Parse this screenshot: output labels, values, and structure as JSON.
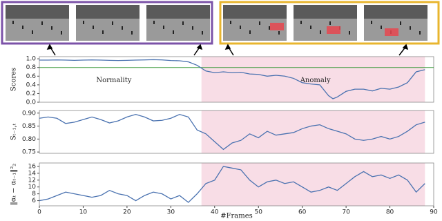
{
  "chart_data": [
    {
      "type": "line",
      "ylabel": "Scores",
      "x": [
        0,
        2,
        4,
        6,
        8,
        10,
        12,
        14,
        16,
        18,
        20,
        22,
        24,
        26,
        28,
        30,
        32,
        34,
        36,
        38,
        40,
        42,
        44,
        46,
        48,
        50,
        52,
        54,
        56,
        58,
        60,
        62,
        64,
        66,
        67,
        68,
        70,
        72,
        74,
        76,
        78,
        80,
        82,
        84,
        86,
        88
      ],
      "series": [
        {
          "color": "#4a72b0",
          "values": [
            0.97,
            0.97,
            0.975,
            0.97,
            0.965,
            0.97,
            0.975,
            0.97,
            0.965,
            0.96,
            0.965,
            0.97,
            0.975,
            0.98,
            0.975,
            0.96,
            0.955,
            0.93,
            0.85,
            0.72,
            0.68,
            0.7,
            0.68,
            0.69,
            0.65,
            0.64,
            0.6,
            0.62,
            0.6,
            0.55,
            0.45,
            0.42,
            0.4,
            0.15,
            0.08,
            0.12,
            0.25,
            0.3,
            0.3,
            0.26,
            0.32,
            0.3,
            0.35,
            0.45,
            0.7,
            0.75
          ]
        }
      ],
      "threshold": 0.8,
      "threshold_color": "#3a9a3a",
      "shaded_x": [
        37,
        88
      ],
      "shade_color": "#f8dde6",
      "annotations": [
        {
          "text": "Normality",
          "x": 17,
          "y": 0.5
        },
        {
          "text": "Anomaly",
          "x": 63,
          "y": 0.5
        }
      ],
      "xlim": [
        0,
        90
      ],
      "ylim": [
        0,
        1.05
      ],
      "yticks": [
        {
          "value": 0,
          "label": "0.0"
        },
        {
          "value": 0.2,
          "label": "0.2"
        },
        {
          "value": 0.4,
          "label": "0.4"
        },
        {
          "value": 0.6,
          "label": "0.6"
        },
        {
          "value": 0.8,
          "label": "0.8"
        },
        {
          "value": 1,
          "label": "1.0"
        }
      ]
    },
    {
      "type": "line",
      "ylabel": "Sₜ₋₁,ₜ",
      "x": [
        0,
        2,
        4,
        6,
        8,
        10,
        12,
        14,
        16,
        18,
        20,
        22,
        24,
        26,
        28,
        30,
        32,
        34,
        36,
        38,
        40,
        42,
        44,
        46,
        48,
        50,
        52,
        54,
        56,
        58,
        60,
        62,
        64,
        66,
        68,
        70,
        72,
        74,
        76,
        78,
        80,
        82,
        84,
        86,
        88
      ],
      "series": [
        {
          "color": "#4a72b0",
          "values": [
            0.88,
            0.885,
            0.88,
            0.86,
            0.865,
            0.875,
            0.885,
            0.875,
            0.862,
            0.87,
            0.885,
            0.895,
            0.885,
            0.87,
            0.872,
            0.88,
            0.895,
            0.885,
            0.835,
            0.82,
            0.79,
            0.76,
            0.785,
            0.795,
            0.82,
            0.805,
            0.83,
            0.815,
            0.82,
            0.825,
            0.84,
            0.85,
            0.855,
            0.84,
            0.83,
            0.82,
            0.8,
            0.795,
            0.8,
            0.81,
            0.8,
            0.81,
            0.83,
            0.855,
            0.865
          ]
        }
      ],
      "shaded_x": [
        37,
        88
      ],
      "shade_color": "#f8dde6",
      "xlim": [
        0,
        90
      ],
      "ylim": [
        0.745,
        0.91
      ],
      "yticks": [
        0.75,
        {
          "value": 0.8,
          "label": "0.80"
        },
        0.85,
        {
          "value": 0.9,
          "label": "0.90"
        }
      ]
    },
    {
      "type": "line",
      "ylabel": "‖αₜ − αₜ₋₁‖²₂",
      "xlabel": "#Frames",
      "x": [
        0,
        2,
        4,
        6,
        8,
        10,
        12,
        14,
        16,
        18,
        20,
        22,
        24,
        26,
        28,
        30,
        32,
        34,
        36,
        38,
        40,
        42,
        44,
        46,
        48,
        50,
        52,
        54,
        56,
        58,
        60,
        62,
        64,
        66,
        68,
        70,
        72,
        74,
        76,
        78,
        80,
        82,
        84,
        86,
        88
      ],
      "series": [
        {
          "color": "#4a72b0",
          "values": [
            6,
            6.5,
            7.5,
            8.5,
            8,
            7.5,
            7,
            7.5,
            9,
            8,
            7.5,
            6,
            7.5,
            8.5,
            8,
            6.5,
            7.5,
            5.5,
            8,
            11,
            12,
            16,
            15.5,
            15,
            12,
            10,
            11.5,
            12,
            11,
            11.5,
            10,
            8.5,
            9,
            10,
            9,
            11,
            13,
            14.5,
            13,
            13.5,
            12.5,
            13.5,
            12,
            8.5,
            11
          ]
        }
      ],
      "shaded_x": [
        37,
        88
      ],
      "shade_color": "#f8dde6",
      "xlim": [
        0,
        90
      ],
      "ylim": [
        4.5,
        17
      ],
      "yticks": [
        6,
        8,
        10,
        12,
        14,
        16
      ],
      "xticks": [
        0,
        10,
        20,
        30,
        40,
        50,
        60,
        70,
        80,
        90
      ]
    }
  ]
}
